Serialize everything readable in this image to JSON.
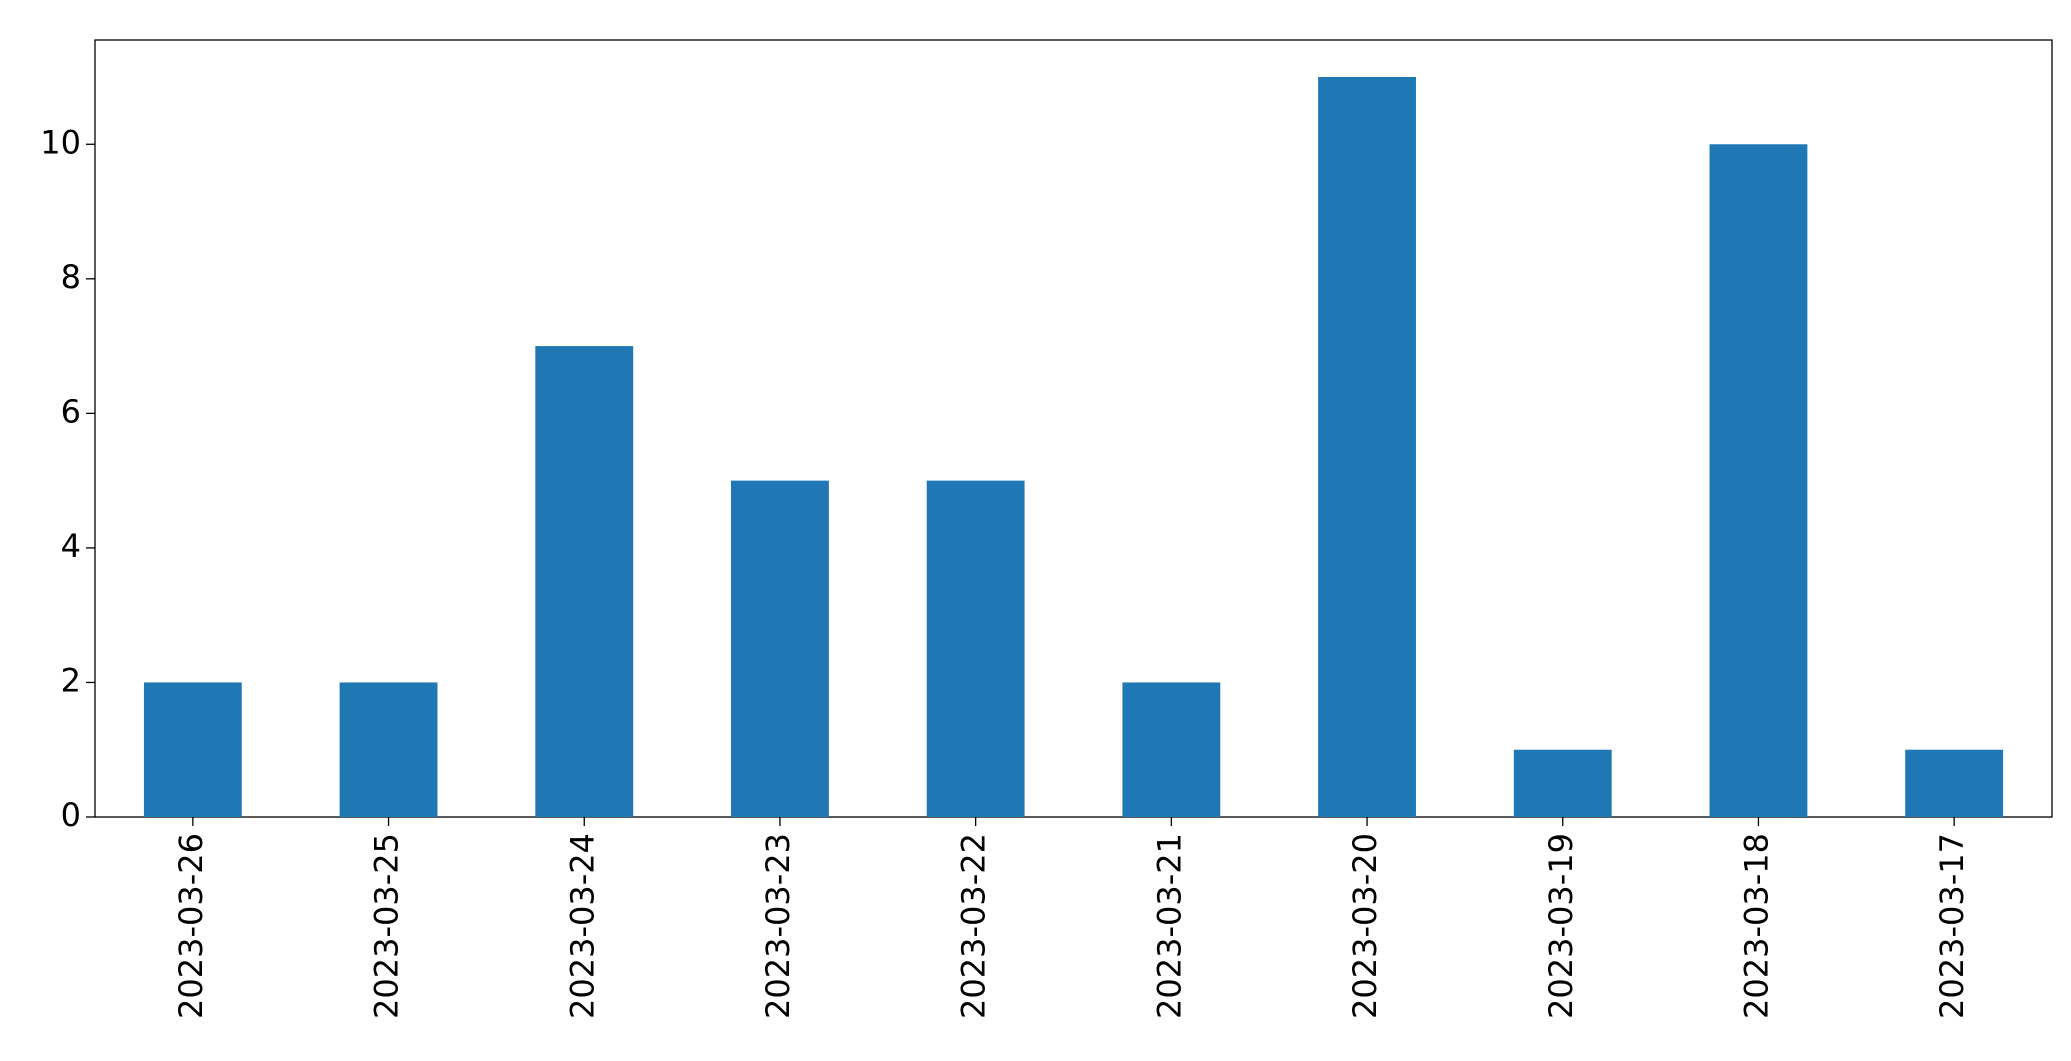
{
  "chart_data": {
    "type": "bar",
    "categories": [
      "2023-03-26",
      "2023-03-25",
      "2023-03-24",
      "2023-03-23",
      "2023-03-22",
      "2023-03-21",
      "2023-03-20",
      "2023-03-19",
      "2023-03-18",
      "2023-03-17"
    ],
    "values": [
      2,
      2,
      7,
      5,
      5,
      2,
      11,
      1,
      10,
      1
    ],
    "color": "#1f77b4",
    "ylim": [
      0,
      11.55
    ],
    "yticks": [
      0,
      2,
      4,
      6,
      8,
      10
    ],
    "grid": false
  }
}
